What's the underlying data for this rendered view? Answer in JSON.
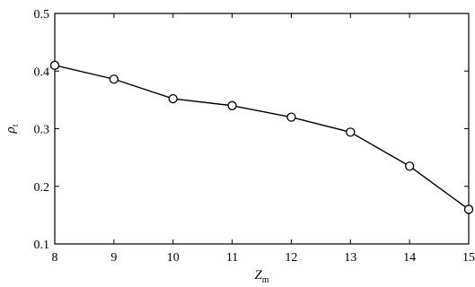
{
  "chart_data": {
    "type": "line",
    "title": "",
    "xlabel": "Z",
    "xlabel_sub": "m",
    "ylabel": "ρ",
    "ylabel_sub": "t",
    "x": [
      8,
      9,
      10,
      11,
      12,
      13,
      14,
      15
    ],
    "series": [
      {
        "values": [
          0.41,
          0.386,
          0.352,
          0.34,
          0.32,
          0.294,
          0.235,
          0.16
        ],
        "marker": "circle",
        "color": "#000000"
      }
    ],
    "xlim": [
      8,
      15
    ],
    "ylim": [
      0.1,
      0.5
    ],
    "xticks": [
      "8",
      "9",
      "10",
      "11",
      "12",
      "13",
      "14",
      "15"
    ],
    "yticks": [
      "0.1",
      "0.2",
      "0.3",
      "0.4",
      "0.5"
    ],
    "grid": false,
    "legend": "none"
  }
}
